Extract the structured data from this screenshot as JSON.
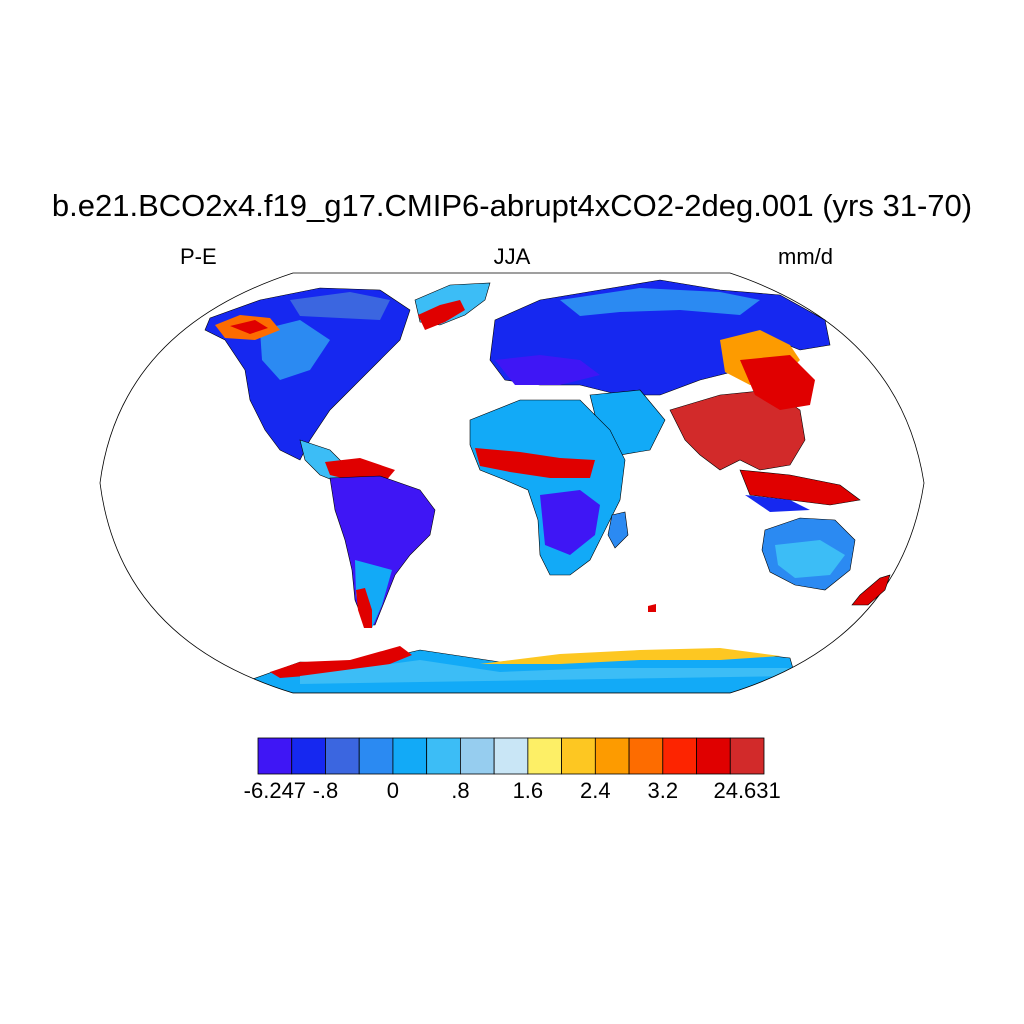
{
  "title": "b.e21.BCO2x4.f19_g17.CMIP6-abrupt4xCO2-2deg.001 (yrs 31-70)",
  "subtitle_left": "P-E",
  "subtitle_center": "JJA",
  "subtitle_right": "mm/d",
  "colorbar": {
    "colors": [
      "#3f16f5",
      "#1628f0",
      "#3b66e0",
      "#2b8af2",
      "#12aaf7",
      "#3cbdf6",
      "#96cdef",
      "#c9e6f6",
      "#fdef66",
      "#fdc722",
      "#fd9b00",
      "#fd6c00",
      "#fd2400",
      "#e00000",
      "#d22a2a"
    ],
    "tick_labels": [
      "-6.247",
      "-.8",
      "0",
      ".8",
      "1.6",
      "2.4",
      "3.2",
      "24.631"
    ]
  },
  "map": {
    "projection": "Robinson",
    "season": "JJA",
    "variable": "P-E",
    "units": "mm/d"
  }
}
